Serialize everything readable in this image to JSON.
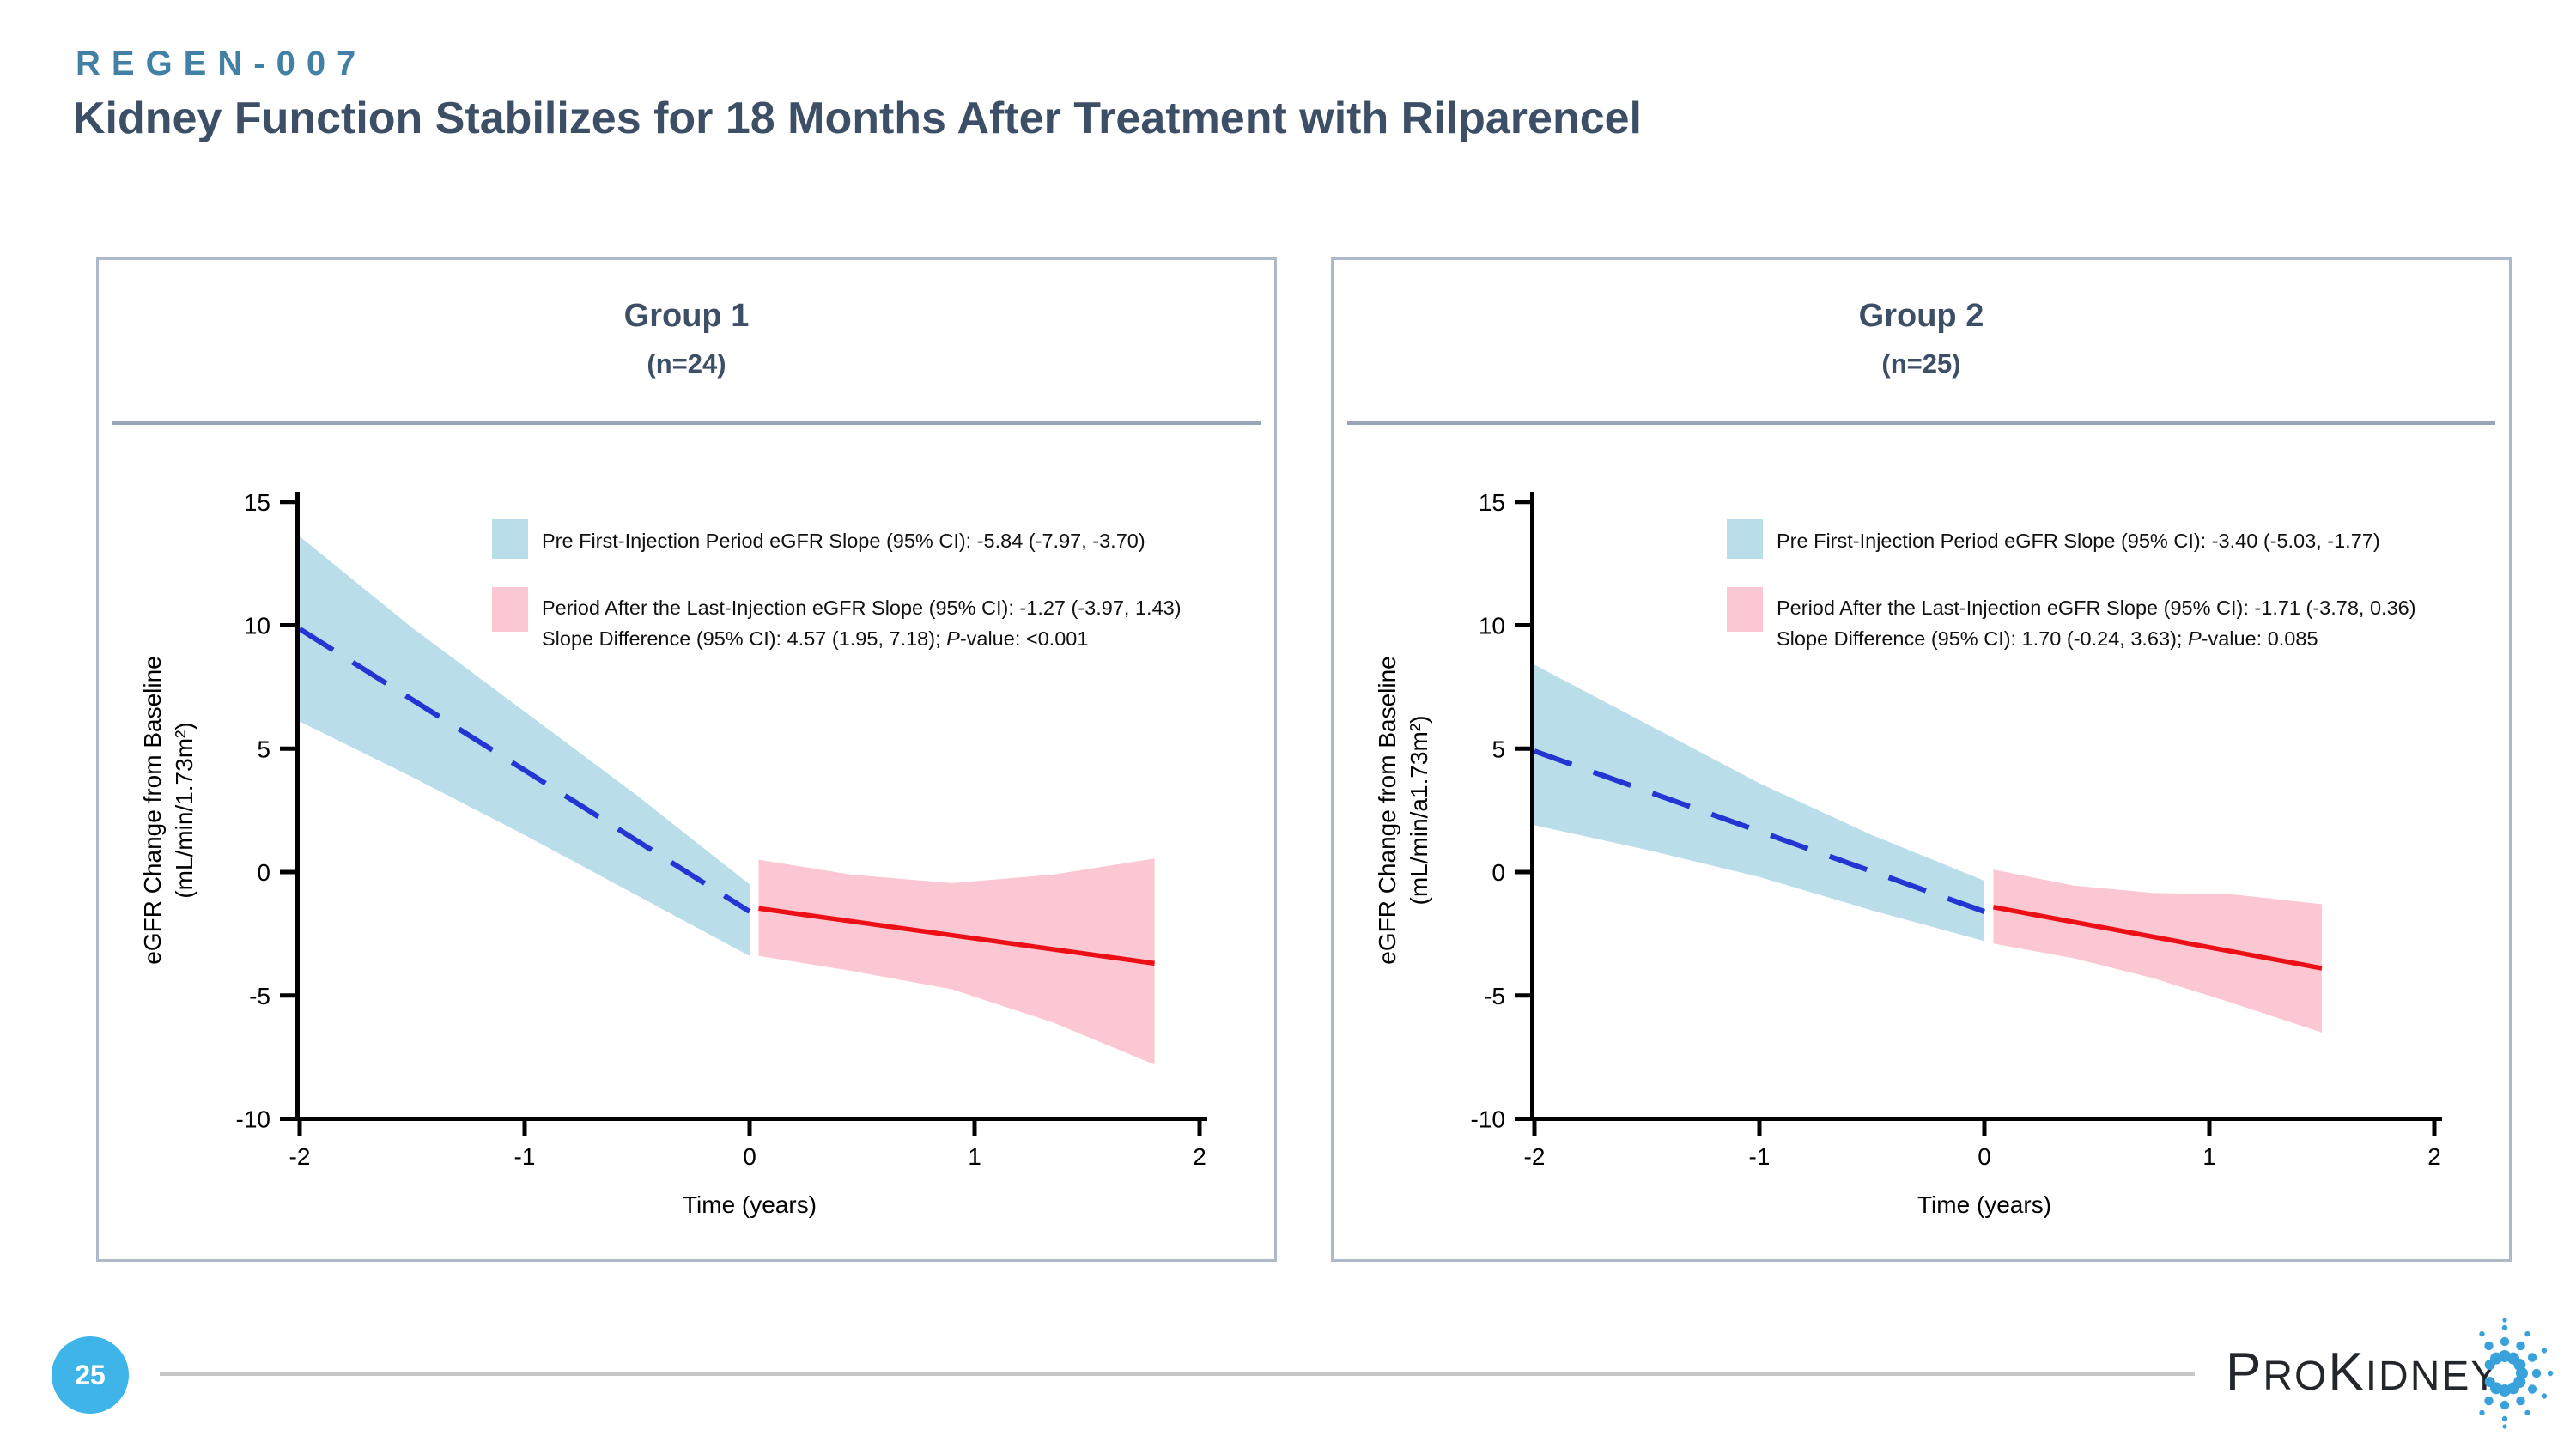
{
  "slide": {
    "eyebrow": "REGEN-007",
    "title": "Kidney Function Stabilizes for 18 Months After Treatment with Rilparencel"
  },
  "footer": {
    "page_number": "25",
    "logo_parts": [
      "P",
      "RO",
      "K",
      "IDNEY"
    ]
  },
  "colors": {
    "eyebrow_teal": "#4281a5",
    "title_slate": "#3d4f66",
    "panel_border": "#aebac7",
    "divider": "#97a5b6",
    "band_blue": "#b9dde9",
    "line_blue": "#2335d3",
    "band_pink": "#fbc7d3",
    "line_red": "#ec1016",
    "axis_black": "#000000",
    "page_circle_blue": "#3eb4e8",
    "footer_line_gray": "#c7c7c7",
    "logo_dot_blue": "#3aa2da"
  },
  "chart_data": [
    {
      "type": "area",
      "title": "Group 1",
      "subtitle": "(n=24)",
      "xlabel": "Time (years)",
      "ylabel": [
        "eGFR Change from Baseline",
        "(mL/min/1.73m²)"
      ],
      "xlim": [
        -2,
        2
      ],
      "ylim": [
        -10,
        15
      ],
      "xticks": [
        -2,
        -1,
        0,
        1,
        2
      ],
      "yticks": [
        15,
        10,
        5,
        0,
        -5,
        -10
      ],
      "grid": false,
      "legend_position": "upper-right-inside",
      "legend": {
        "pre": "Pre First-Injection Period eGFR Slope (95% CI): -5.84 (-7.97, -3.70)",
        "post": "Period After the Last-Injection eGFR Slope (95% CI): -1.27 (-3.97, 1.43)",
        "diff": "Slope Difference (95% CI): 4.57 (1.95, 7.18); P-value: <0.001"
      },
      "stats": {
        "pre_slope": -5.84,
        "pre_ci": [
          -7.97,
          -3.7
        ],
        "post_slope": -1.27,
        "post_ci": [
          -3.97,
          1.43
        ],
        "slope_diff": 4.57,
        "diff_ci": [
          1.95,
          7.18
        ],
        "p_value": "<0.001"
      },
      "series": [
        {
          "name": "pre",
          "line": [
            [
              -2,
              9.85
            ],
            [
              0,
              -1.6
            ]
          ],
          "band_upper": [
            [
              -2,
              13.6
            ],
            [
              -1.5,
              9.9
            ],
            [
              -1,
              6.5
            ],
            [
              -0.5,
              3.1
            ],
            [
              0,
              -0.5
            ]
          ],
          "band_lower": [
            [
              -2,
              6.1
            ],
            [
              -1.5,
              3.85
            ],
            [
              -1,
              1.5
            ],
            [
              -0.5,
              -0.95
            ],
            [
              0,
              -3.4
            ]
          ]
        },
        {
          "name": "post",
          "line": [
            [
              0.04,
              -1.47
            ],
            [
              1.8,
              -3.7
            ]
          ],
          "band_upper": [
            [
              0.04,
              0.5
            ],
            [
              0.45,
              -0.1
            ],
            [
              0.9,
              -0.45
            ],
            [
              1.35,
              -0.1
            ],
            [
              1.8,
              0.55
            ]
          ],
          "band_lower": [
            [
              0.04,
              -3.4
            ],
            [
              0.45,
              -4.0
            ],
            [
              0.9,
              -4.75
            ],
            [
              1.35,
              -6.1
            ],
            [
              1.8,
              -7.8
            ]
          ]
        }
      ]
    },
    {
      "type": "area",
      "title": "Group 2",
      "subtitle": "(n=25)",
      "xlabel": "Time (years)",
      "ylabel": [
        "eGFR Change from Baseline",
        "(mL/min/a1.73m²)"
      ],
      "xlim": [
        -2,
        2
      ],
      "ylim": [
        -10,
        15
      ],
      "xticks": [
        -2,
        -1,
        0,
        1,
        2
      ],
      "yticks": [
        15,
        10,
        5,
        0,
        -5,
        -10
      ],
      "grid": false,
      "legend_position": "upper-right-inside",
      "legend": {
        "pre": "Pre First-Injection Period eGFR Slope (95% CI): -3.40 (-5.03, -1.77)",
        "post": "Period After the Last-Injection eGFR Slope (95% CI): -1.71 (-3.78, 0.36)",
        "diff": "Slope Difference (95% CI): 1.70 (-0.24, 3.63); P-value: 0.085"
      },
      "stats": {
        "pre_slope": -3.4,
        "pre_ci": [
          -5.03,
          -1.77
        ],
        "post_slope": -1.71,
        "post_ci": [
          -3.78,
          0.36
        ],
        "slope_diff": 1.7,
        "diff_ci": [
          -0.24,
          3.63
        ],
        "p_value": "0.085"
      },
      "series": [
        {
          "name": "pre",
          "line": [
            [
              -2,
              4.9
            ],
            [
              0,
              -1.6
            ]
          ],
          "band_upper": [
            [
              -2,
              8.4
            ],
            [
              -1.5,
              6.0
            ],
            [
              -1,
              3.6
            ],
            [
              -0.5,
              1.5
            ],
            [
              0,
              -0.35
            ]
          ],
          "band_lower": [
            [
              -2,
              1.9
            ],
            [
              -1.5,
              0.9
            ],
            [
              -1,
              -0.2
            ],
            [
              -0.5,
              -1.55
            ],
            [
              0,
              -2.8
            ]
          ]
        },
        {
          "name": "post",
          "line": [
            [
              0.04,
              -1.42
            ],
            [
              1.5,
              -3.9
            ]
          ],
          "band_upper": [
            [
              0.04,
              0.1
            ],
            [
              0.4,
              -0.55
            ],
            [
              0.75,
              -0.85
            ],
            [
              1.1,
              -0.9
            ],
            [
              1.5,
              -1.3
            ]
          ],
          "band_lower": [
            [
              0.04,
              -2.9
            ],
            [
              0.4,
              -3.5
            ],
            [
              0.75,
              -4.3
            ],
            [
              1.1,
              -5.3
            ],
            [
              1.5,
              -6.5
            ]
          ]
        }
      ]
    }
  ]
}
